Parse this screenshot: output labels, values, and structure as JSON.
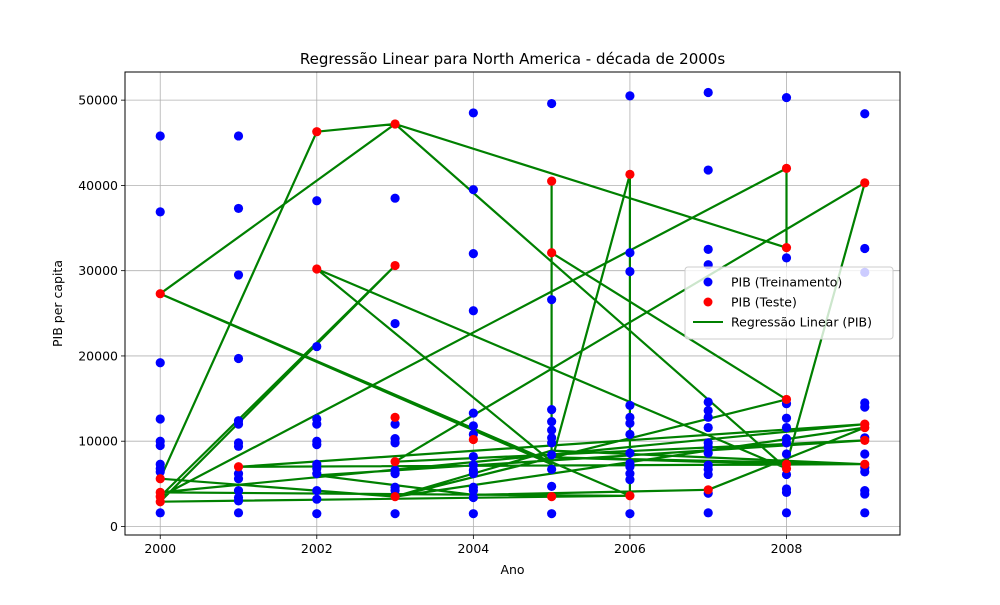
{
  "chart_data": {
    "type": "scatter",
    "title": "Regressão Linear para North America - década de 2000s",
    "xlabel": "Ano",
    "ylabel": "PIB per capita",
    "xlim": [
      1999.55,
      2009.45
    ],
    "ylim": [
      -1000,
      53300
    ],
    "x_ticks": [
      2000,
      2002,
      2004,
      2006,
      2008
    ],
    "y_ticks": [
      0,
      10000,
      20000,
      30000,
      40000,
      50000
    ],
    "grid": true,
    "legend_position": "center-right",
    "colors": {
      "train": "#0000ff",
      "test": "#ff0000",
      "regression": "#008000"
    },
    "series": [
      {
        "name": "PIB (Treinamento)",
        "kind": "scatter",
        "color": "#0000ff",
        "points": [
          [
            2000,
            45800
          ],
          [
            2000,
            36900
          ],
          [
            2000,
            19200
          ],
          [
            2000,
            12600
          ],
          [
            2000,
            10000
          ],
          [
            2000,
            9500
          ],
          [
            2000,
            7300
          ],
          [
            2000,
            6800
          ],
          [
            2000,
            6400
          ],
          [
            2000,
            1600
          ],
          [
            2001,
            45800
          ],
          [
            2001,
            37300
          ],
          [
            2001,
            29500
          ],
          [
            2001,
            19700
          ],
          [
            2001,
            12400
          ],
          [
            2001,
            12000
          ],
          [
            2001,
            9800
          ],
          [
            2001,
            9400
          ],
          [
            2001,
            6200
          ],
          [
            2001,
            5600
          ],
          [
            2001,
            4200
          ],
          [
            2001,
            3400
          ],
          [
            2001,
            3000
          ],
          [
            2001,
            1600
          ],
          [
            2002,
            38200
          ],
          [
            2002,
            21100
          ],
          [
            2002,
            12600
          ],
          [
            2002,
            12000
          ],
          [
            2002,
            10000
          ],
          [
            2002,
            9600
          ],
          [
            2002,
            7300
          ],
          [
            2002,
            6800
          ],
          [
            2002,
            6200
          ],
          [
            2002,
            4200
          ],
          [
            2002,
            3200
          ],
          [
            2002,
            1500
          ],
          [
            2003,
            38500
          ],
          [
            2003,
            23800
          ],
          [
            2003,
            12000
          ],
          [
            2003,
            10300
          ],
          [
            2003,
            9800
          ],
          [
            2003,
            6600
          ],
          [
            2003,
            6200
          ],
          [
            2003,
            4600
          ],
          [
            2003,
            4200
          ],
          [
            2003,
            1500
          ],
          [
            2004,
            48500
          ],
          [
            2004,
            39500
          ],
          [
            2004,
            32000
          ],
          [
            2004,
            25300
          ],
          [
            2004,
            13300
          ],
          [
            2004,
            11800
          ],
          [
            2004,
            10800
          ],
          [
            2004,
            8200
          ],
          [
            2004,
            7200
          ],
          [
            2004,
            6600
          ],
          [
            2004,
            6200
          ],
          [
            2004,
            4600
          ],
          [
            2004,
            4200
          ],
          [
            2004,
            3400
          ],
          [
            2004,
            1500
          ],
          [
            2005,
            49600
          ],
          [
            2005,
            26600
          ],
          [
            2005,
            13700
          ],
          [
            2005,
            12300
          ],
          [
            2005,
            11300
          ],
          [
            2005,
            10400
          ],
          [
            2005,
            9800
          ],
          [
            2005,
            8400
          ],
          [
            2005,
            6700
          ],
          [
            2005,
            4700
          ],
          [
            2005,
            1500
          ],
          [
            2006,
            50500
          ],
          [
            2006,
            32100
          ],
          [
            2006,
            29900
          ],
          [
            2006,
            14200
          ],
          [
            2006,
            12800
          ],
          [
            2006,
            12100
          ],
          [
            2006,
            10800
          ],
          [
            2006,
            8600
          ],
          [
            2006,
            7400
          ],
          [
            2006,
            7000
          ],
          [
            2006,
            6200
          ],
          [
            2006,
            5500
          ],
          [
            2006,
            1500
          ],
          [
            2007,
            50900
          ],
          [
            2007,
            41800
          ],
          [
            2007,
            32500
          ],
          [
            2007,
            30700
          ],
          [
            2007,
            14600
          ],
          [
            2007,
            13600
          ],
          [
            2007,
            12800
          ],
          [
            2007,
            11600
          ],
          [
            2007,
            9800
          ],
          [
            2007,
            9300
          ],
          [
            2007,
            8600
          ],
          [
            2007,
            7200
          ],
          [
            2007,
            6700
          ],
          [
            2007,
            6100
          ],
          [
            2007,
            3900
          ],
          [
            2007,
            1600
          ],
          [
            2008,
            50300
          ],
          [
            2008,
            31500
          ],
          [
            2008,
            14400
          ],
          [
            2008,
            12700
          ],
          [
            2008,
            11600
          ],
          [
            2008,
            10300
          ],
          [
            2008,
            9800
          ],
          [
            2008,
            8500
          ],
          [
            2008,
            6100
          ],
          [
            2008,
            4400
          ],
          [
            2008,
            4000
          ],
          [
            2008,
            1600
          ],
          [
            2009,
            48400
          ],
          [
            2009,
            32600
          ],
          [
            2009,
            29800
          ],
          [
            2009,
            14500
          ],
          [
            2009,
            14000
          ],
          [
            2009,
            10400
          ],
          [
            2009,
            8500
          ],
          [
            2009,
            6900
          ],
          [
            2009,
            6400
          ],
          [
            2009,
            4200
          ],
          [
            2009,
            3800
          ],
          [
            2009,
            1600
          ]
        ]
      },
      {
        "name": "PIB (Teste)",
        "kind": "scatter",
        "color": "#ff0000",
        "points": [
          [
            2000,
            27300
          ],
          [
            2000,
            5600
          ],
          [
            2000,
            4000
          ],
          [
            2000,
            3500
          ],
          [
            2000,
            2900
          ],
          [
            2001,
            7000
          ],
          [
            2002,
            46300
          ],
          [
            2002,
            30200
          ],
          [
            2003,
            47200
          ],
          [
            2003,
            30600
          ],
          [
            2003,
            12800
          ],
          [
            2003,
            7600
          ],
          [
            2003,
            3500
          ],
          [
            2004,
            10200
          ],
          [
            2005,
            40500
          ],
          [
            2005,
            32100
          ],
          [
            2005,
            3500
          ],
          [
            2006,
            41300
          ],
          [
            2006,
            3600
          ],
          [
            2007,
            4300
          ],
          [
            2008,
            42000
          ],
          [
            2008,
            32700
          ],
          [
            2008,
            14900
          ],
          [
            2008,
            7300
          ],
          [
            2008,
            6800
          ],
          [
            2009,
            40300
          ],
          [
            2009,
            12000
          ],
          [
            2009,
            11600
          ],
          [
            2009,
            10100
          ],
          [
            2009,
            7300
          ]
        ]
      },
      {
        "name": "Regressão Linear (PIB)",
        "kind": "line",
        "color": "#008000",
        "points": [
          [
            2000,
            27300
          ],
          [
            2005,
            7300
          ],
          [
            2005,
            40500
          ],
          [
            2005,
            32100
          ],
          [
            2008,
            14900
          ],
          [
            2003,
            3500
          ],
          [
            2000,
            5600
          ],
          [
            2002,
            46300
          ],
          [
            2003,
            47200
          ],
          [
            2008,
            6800
          ],
          [
            2002,
            30200
          ],
          [
            2005,
            7600
          ],
          [
            2006,
            41300
          ],
          [
            2006,
            3600
          ],
          [
            2000,
            2900
          ],
          [
            2003,
            30600
          ],
          [
            2000,
            3500
          ],
          [
            2008,
            42000
          ],
          [
            2008,
            32700
          ],
          [
            2003,
            47200
          ],
          [
            2000,
            27300
          ],
          [
            2006,
            3600
          ],
          [
            2000,
            4000
          ],
          [
            2009,
            12000
          ],
          [
            2001,
            7000
          ],
          [
            2009,
            7300
          ],
          [
            2005,
            8100
          ],
          [
            2008,
            7300
          ],
          [
            2009,
            40300
          ],
          [
            2003,
            7600
          ],
          [
            2009,
            10100
          ],
          [
            2002,
            6000
          ],
          [
            2004,
            3700
          ],
          [
            2007,
            4300
          ],
          [
            2009,
            11600
          ],
          [
            2003,
            3500
          ],
          [
            2005,
            8900
          ],
          [
            2009,
            7300
          ]
        ]
      }
    ]
  }
}
